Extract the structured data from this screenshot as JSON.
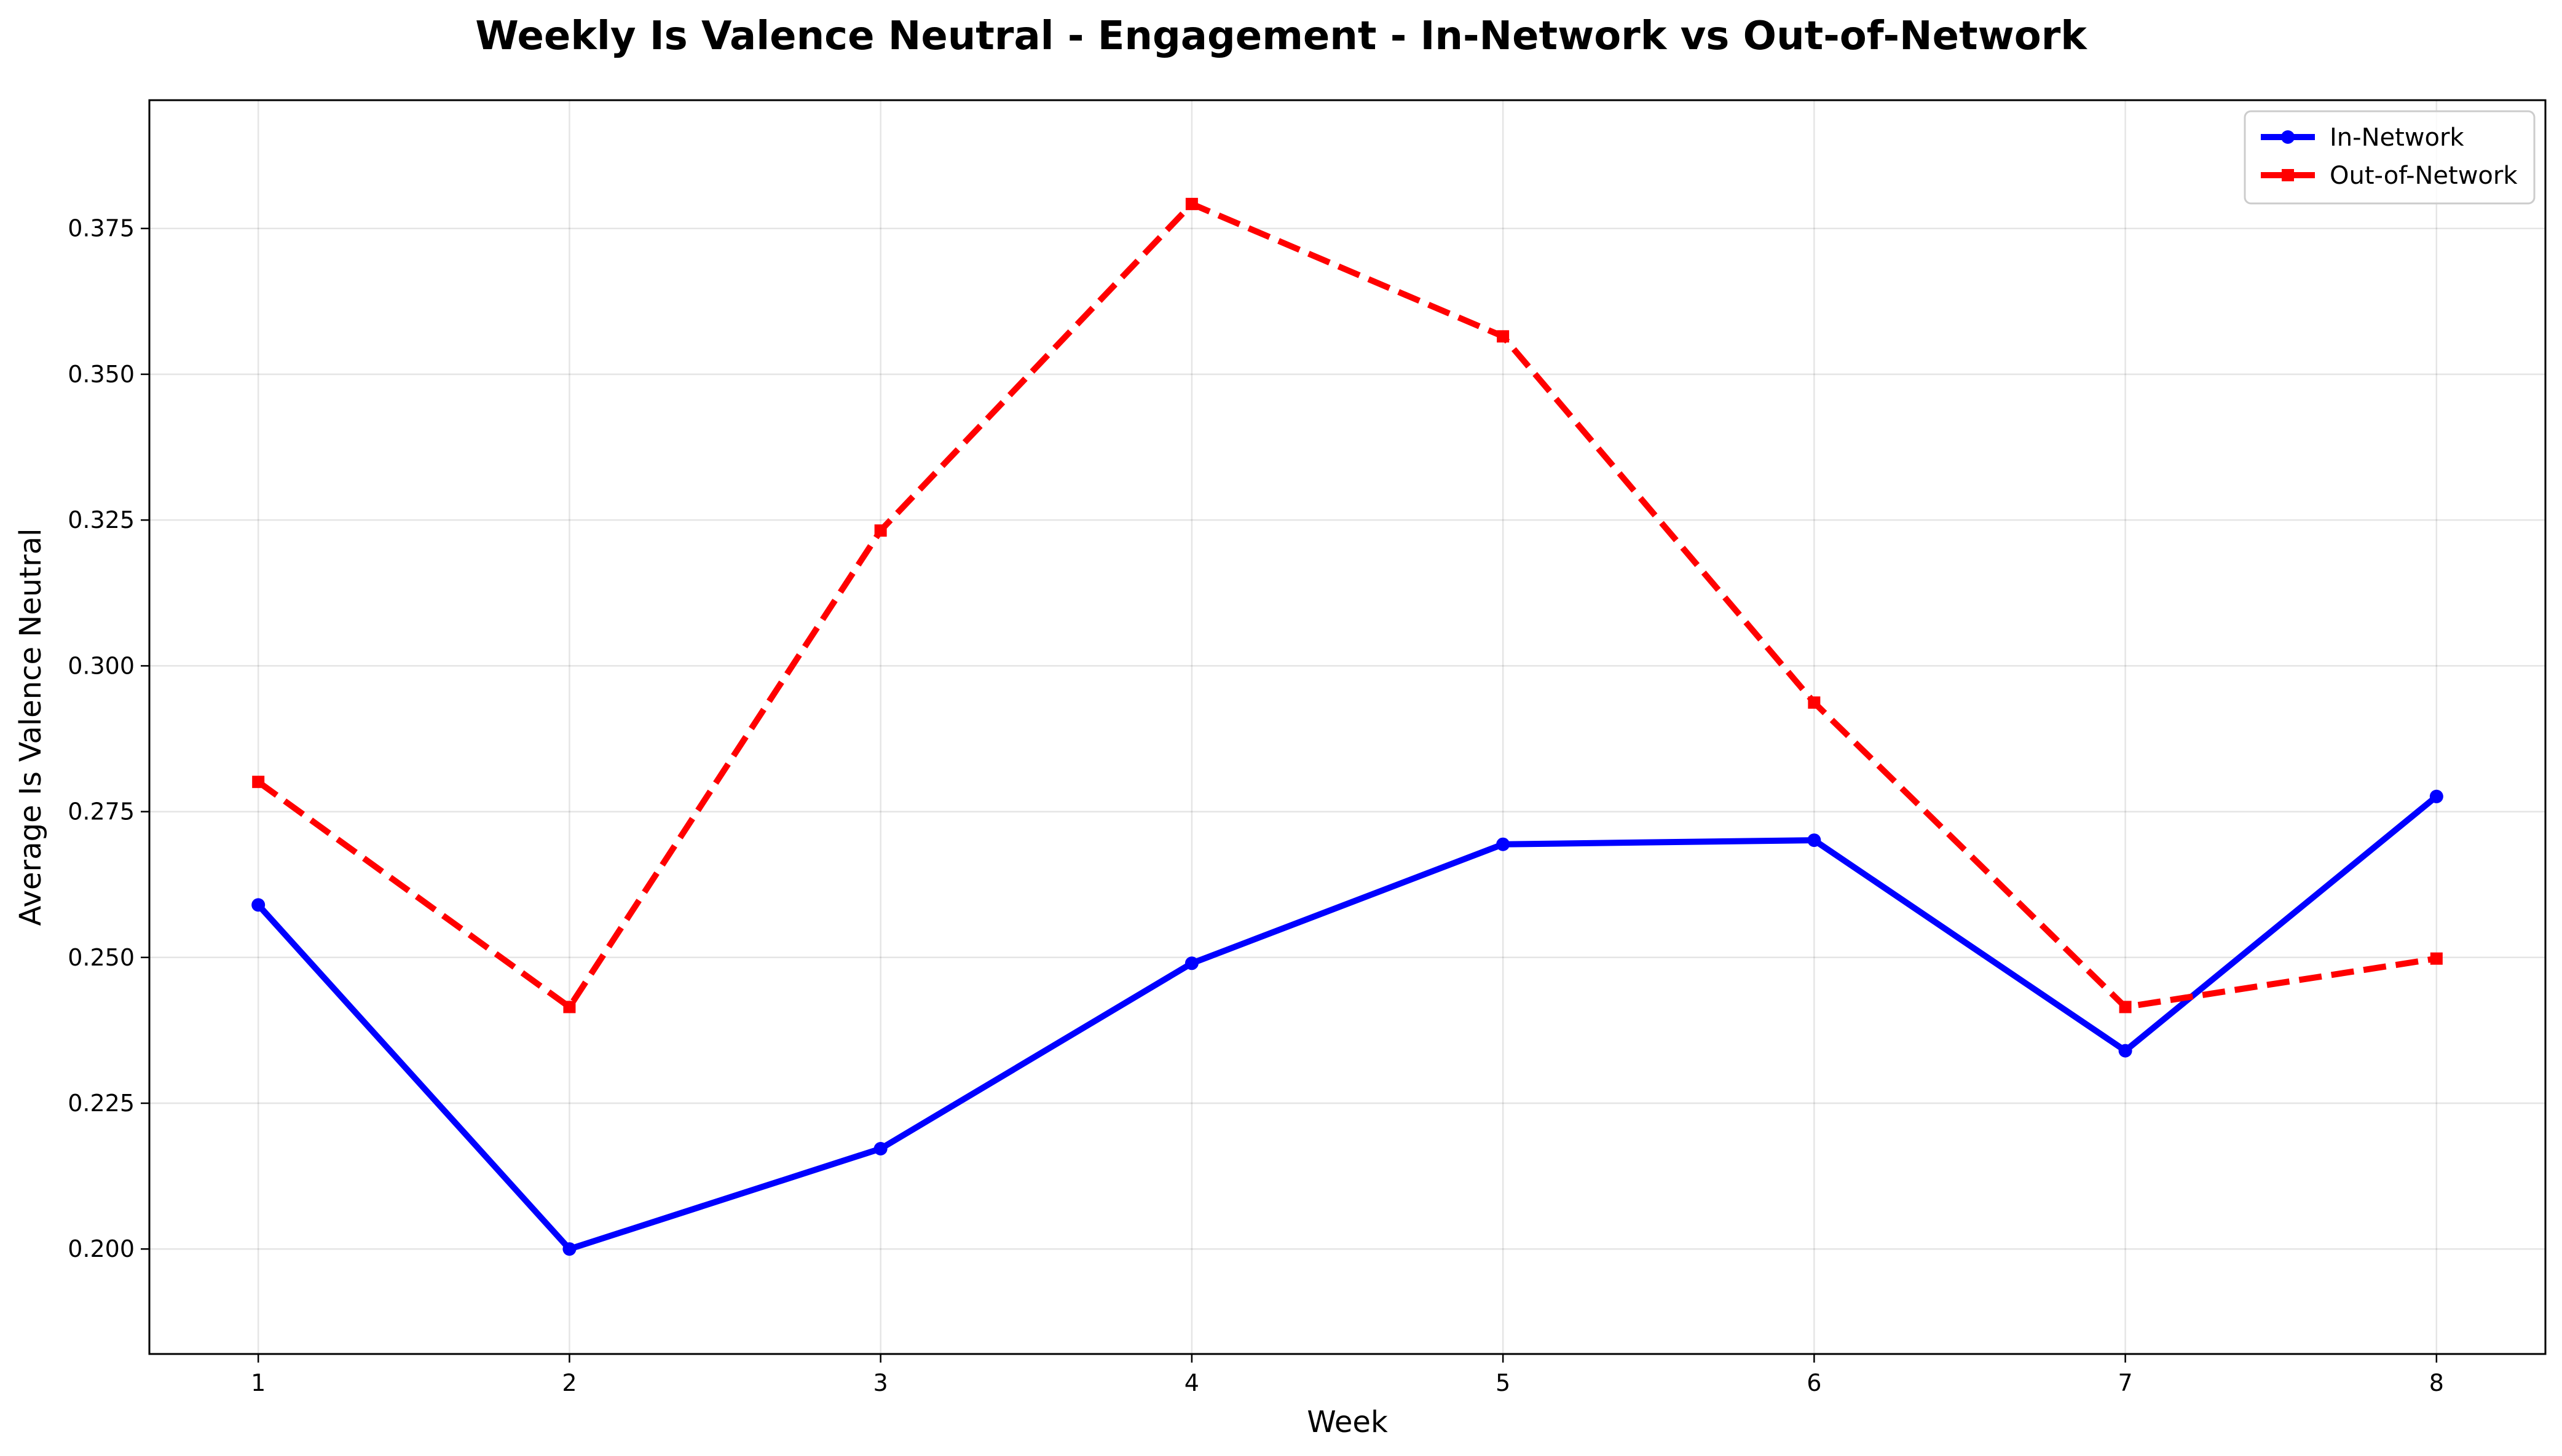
{
  "chart_data": {
    "type": "line",
    "title": "Weekly Is Valence Neutral - Engagement - In-Network vs Out-of-Network",
    "xlabel": "Week",
    "ylabel": "Average Is Valence Neutral",
    "x": [
      1,
      2,
      3,
      4,
      5,
      6,
      7,
      8
    ],
    "xlim": [
      0.65,
      8.35
    ],
    "ylim": [
      0.182,
      0.397
    ],
    "yticks": [
      0.2,
      0.225,
      0.25,
      0.275,
      0.3,
      0.325,
      0.35,
      0.375
    ],
    "ytick_labels": [
      "0.200",
      "0.225",
      "0.250",
      "0.275",
      "0.300",
      "0.325",
      "0.350",
      "0.375"
    ],
    "xtick_labels": [
      "1",
      "2",
      "3",
      "4",
      "5",
      "6",
      "7",
      "8"
    ],
    "grid": true,
    "legend_position": "top-right",
    "series": [
      {
        "name": "In-Network",
        "color": "#0000ff",
        "line_style": "solid",
        "marker": "circle",
        "values": [
          0.259,
          0.2,
          0.2172,
          0.249,
          0.2694,
          0.2701,
          0.234,
          0.2776
        ]
      },
      {
        "name": "Out-of-Network",
        "color": "#ff0000",
        "line_style": "dashed",
        "marker": "square",
        "values": [
          0.2801,
          0.2415,
          0.3232,
          0.3792,
          0.3565,
          0.2937,
          0.2415,
          0.2498
        ]
      }
    ]
  }
}
